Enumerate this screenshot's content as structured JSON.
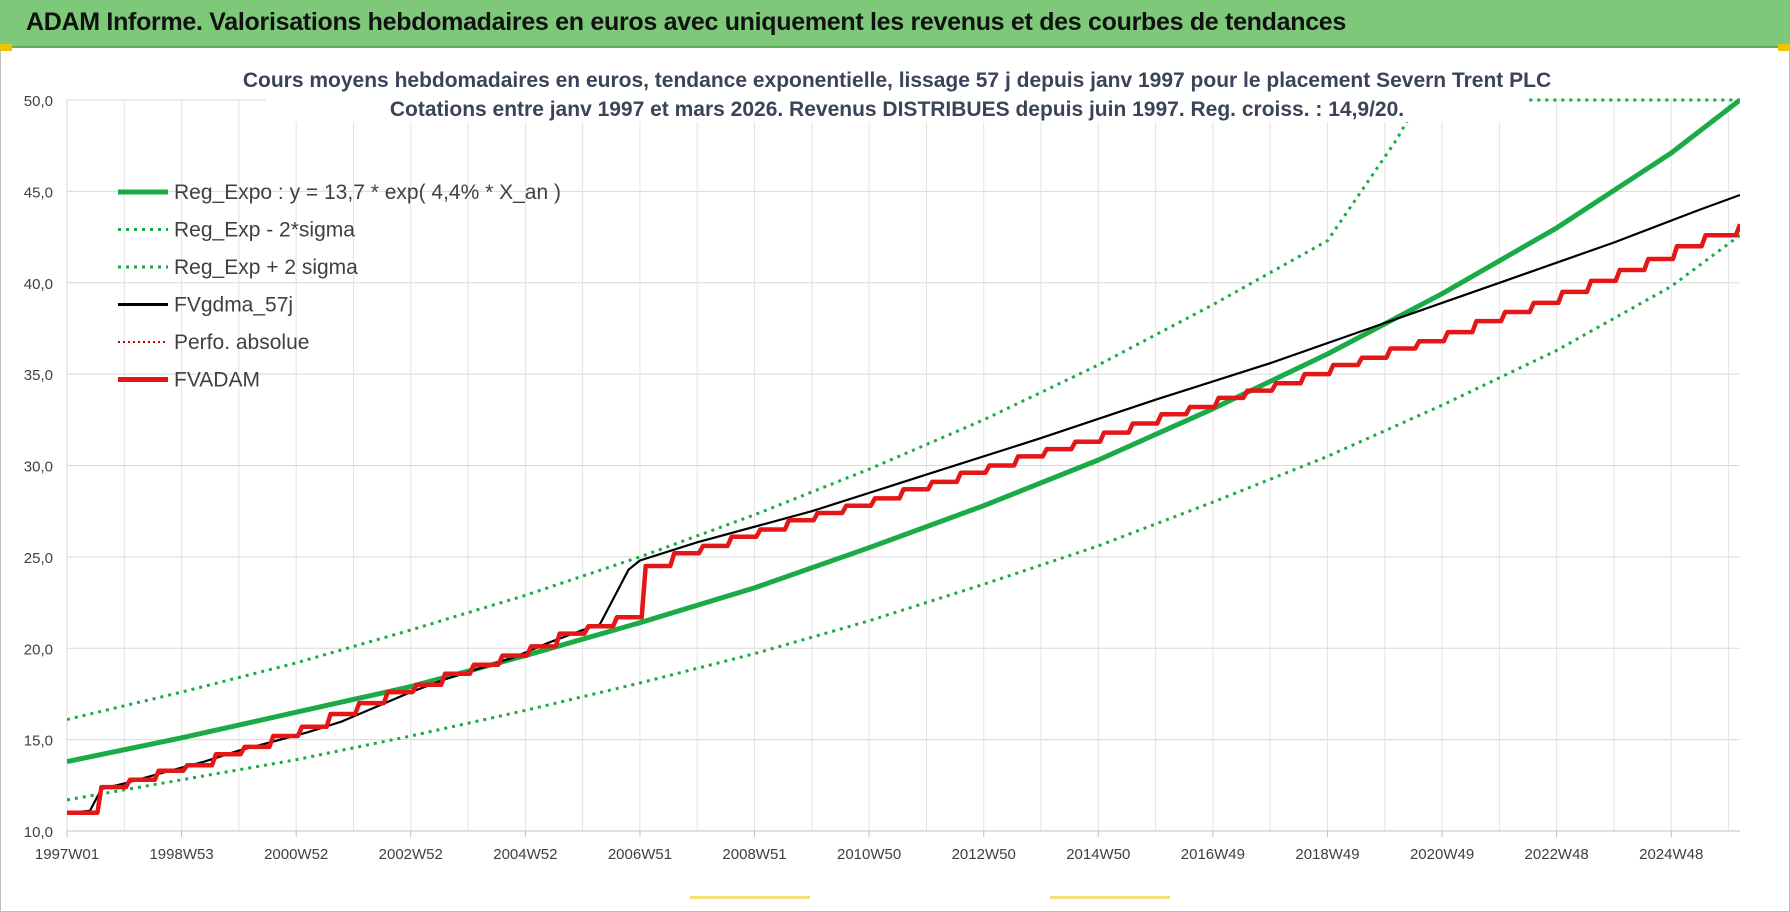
{
  "banner": {
    "title": "ADAM Informe. Valorisations hebdomadaires en euros avec uniquement les revenus et des courbes de tendances"
  },
  "colors": {
    "banner_bg": "#7ec87a",
    "reg_expo": "#1aab47",
    "sigma": "#1aab47",
    "fvgdma": "#000000",
    "perfo": "#cc0000",
    "fvadam": "#e51616"
  },
  "chart_data": {
    "type": "line",
    "title": "Cours moyens hebdomadaires en euros, tendance exponentielle, lissage 57 j depuis janv 1997 pour le placement Severn Trent PLC",
    "subtitle": "Cotations entre janv 1997 et mars 2026. Revenus DISTRIBUES depuis juin 1997. Reg. croiss. : 14,9/20.",
    "xlabel": "",
    "ylabel": "",
    "ylim": [
      10,
      50
    ],
    "xlim": [
      1997.0,
      2026.2
    ],
    "grid": true,
    "legend_position": "top-left",
    "y_ticks": [
      "10,0",
      "15,0",
      "20,0",
      "25,0",
      "30,0",
      "35,0",
      "40,0",
      "45,0",
      "50,0"
    ],
    "y_tick_values": [
      10,
      15,
      20,
      25,
      30,
      35,
      40,
      45,
      50
    ],
    "x_ticks": [
      {
        "label": "1997W01",
        "x": 1997.0
      },
      {
        "label": "1998W53",
        "x": 1999.0
      },
      {
        "label": "2000W52",
        "x": 2001.0
      },
      {
        "label": "2002W52",
        "x": 2003.0
      },
      {
        "label": "2004W52",
        "x": 2005.0
      },
      {
        "label": "2006W51",
        "x": 2007.0
      },
      {
        "label": "2008W51",
        "x": 2009.0
      },
      {
        "label": "2010W50",
        "x": 2011.0
      },
      {
        "label": "2012W50",
        "x": 2013.0
      },
      {
        "label": "2014W50",
        "x": 2015.0
      },
      {
        "label": "2016W49",
        "x": 2017.0
      },
      {
        "label": "2018W49",
        "x": 2019.0
      },
      {
        "label": "2020W49",
        "x": 2021.0
      },
      {
        "label": "2022W48",
        "x": 2023.0
      },
      {
        "label": "2024W48",
        "x": 2025.0
      }
    ],
    "series": [
      {
        "name": "Reg_Expo : y = 13,7 * exp( 4,4% *  X_an )",
        "style": "solid-thick",
        "x": [
          1997.0,
          1999.0,
          2001.0,
          2003.0,
          2005.0,
          2007.0,
          2009.0,
          2011.0,
          2013.0,
          2015.0,
          2017.0,
          2019.0,
          2021.0,
          2023.0,
          2025.0,
          2026.2
        ],
        "values": [
          13.8,
          15.1,
          16.5,
          17.9,
          19.6,
          21.4,
          23.3,
          25.5,
          27.8,
          30.3,
          33.1,
          36.1,
          39.4,
          43.0,
          47.1,
          50.0
        ]
      },
      {
        "name": "Reg_Exp - 2*sigma",
        "style": "dotted",
        "x": [
          1997.0,
          1999.0,
          2001.0,
          2003.0,
          2005.0,
          2007.0,
          2009.0,
          2011.0,
          2013.0,
          2015.0,
          2017.0,
          2019.0,
          2021.0,
          2023.0,
          2025.0,
          2026.2
        ],
        "values": [
          11.7,
          12.8,
          13.9,
          15.2,
          16.6,
          18.1,
          19.7,
          21.5,
          23.5,
          25.6,
          28.0,
          30.5,
          33.3,
          36.3,
          39.8,
          42.6
        ]
      },
      {
        "name": "Reg_Exp + 2 sigma",
        "style": "dotted",
        "x": [
          1997.0,
          1999.0,
          2001.0,
          2003.0,
          2005.0,
          2007.0,
          2009.0,
          2011.0,
          2013.0,
          2015.0,
          2017.0,
          2019.0,
          2020.2,
          2020.6,
          2026.2
        ],
        "values": [
          16.1,
          17.6,
          19.2,
          21.0,
          22.9,
          25.0,
          27.3,
          29.8,
          32.5,
          35.5,
          38.8,
          42.3,
          47.8,
          50.0,
          50.0
        ]
      },
      {
        "name": "FVgdma_57j",
        "style": "solid-thin",
        "x": [
          1997.0,
          1997.4,
          1997.6,
          1998.0,
          1998.8,
          1999.4,
          2000.0,
          2000.6,
          2001.2,
          2001.8,
          2002.4,
          2003.0,
          2003.6,
          2004.2,
          2004.8,
          2005.4,
          2006.0,
          2006.3,
          2006.5,
          2006.8,
          2007.0,
          2008.0,
          2010.0,
          2012.0,
          2014.0,
          2016.0,
          2018.0,
          2020.0,
          2022.0,
          2024.0,
          2025.5,
          2026.2
        ],
        "values": [
          11.0,
          11.1,
          12.3,
          12.6,
          13.3,
          13.8,
          14.4,
          14.9,
          15.4,
          16.0,
          16.8,
          17.6,
          18.3,
          18.9,
          19.5,
          20.3,
          21.0,
          21.3,
          22.5,
          24.3,
          24.8,
          25.8,
          27.5,
          29.5,
          31.5,
          33.6,
          35.6,
          37.8,
          40.0,
          42.2,
          44.0,
          44.8
        ]
      },
      {
        "name": "Perfo. absolue",
        "style": "dotted-red",
        "x": [],
        "values": []
      },
      {
        "name": "FVADAM",
        "style": "step-thick",
        "x": [
          1997.0,
          1997.6,
          1998.1,
          1998.6,
          1999.1,
          1999.6,
          2000.1,
          2000.6,
          2001.1,
          2001.6,
          2002.1,
          2002.6,
          2003.1,
          2003.6,
          2004.1,
          2004.6,
          2005.1,
          2005.6,
          2006.1,
          2006.6,
          2007.1,
          2007.6,
          2008.1,
          2008.6,
          2009.1,
          2009.6,
          2010.1,
          2010.6,
          2011.1,
          2011.6,
          2012.1,
          2012.6,
          2013.1,
          2013.6,
          2014.1,
          2014.6,
          2015.1,
          2015.6,
          2016.1,
          2016.6,
          2017.1,
          2017.6,
          2018.1,
          2018.6,
          2019.1,
          2019.6,
          2020.1,
          2020.6,
          2021.1,
          2021.6,
          2022.1,
          2022.6,
          2023.1,
          2023.6,
          2024.1,
          2024.6,
          2025.1,
          2025.6,
          2026.2
        ],
        "values": [
          11.0,
          12.4,
          12.8,
          13.3,
          13.6,
          14.2,
          14.6,
          15.2,
          15.7,
          16.4,
          17.0,
          17.6,
          18.0,
          18.6,
          19.1,
          19.6,
          20.1,
          20.8,
          21.2,
          21.7,
          24.5,
          25.2,
          25.6,
          26.1,
          26.5,
          27.0,
          27.4,
          27.8,
          28.2,
          28.7,
          29.1,
          29.6,
          30.0,
          30.5,
          30.9,
          31.3,
          31.8,
          32.3,
          32.8,
          33.2,
          33.7,
          34.1,
          34.5,
          35.0,
          35.5,
          35.9,
          36.4,
          36.8,
          37.3,
          37.9,
          38.4,
          38.9,
          39.5,
          40.1,
          40.7,
          41.3,
          42.0,
          42.6,
          43.2
        ]
      }
    ]
  }
}
